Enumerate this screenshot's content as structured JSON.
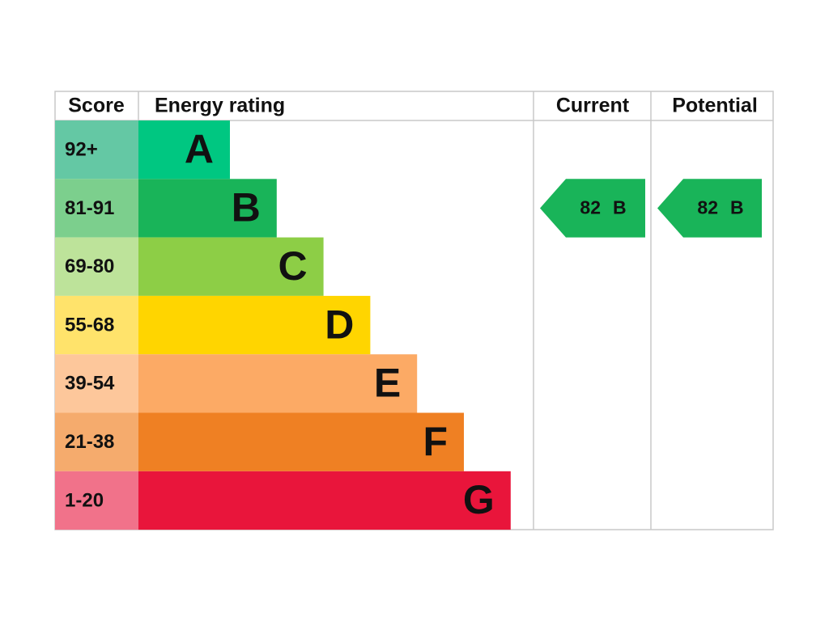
{
  "header": {
    "score": "Score",
    "rating": "Energy rating",
    "current": "Current",
    "potential": "Potential"
  },
  "rows": [
    {
      "score": "92+",
      "band": "A"
    },
    {
      "score": "81-91",
      "band": "B"
    },
    {
      "score": "69-80",
      "band": "C"
    },
    {
      "score": "55-68",
      "band": "D"
    },
    {
      "score": "39-54",
      "band": "E"
    },
    {
      "score": "21-38",
      "band": "F"
    },
    {
      "score": "1-20",
      "band": "G"
    }
  ],
  "current": {
    "value": 82,
    "band": "B"
  },
  "potential": {
    "value": 82,
    "band": "B"
  }
}
